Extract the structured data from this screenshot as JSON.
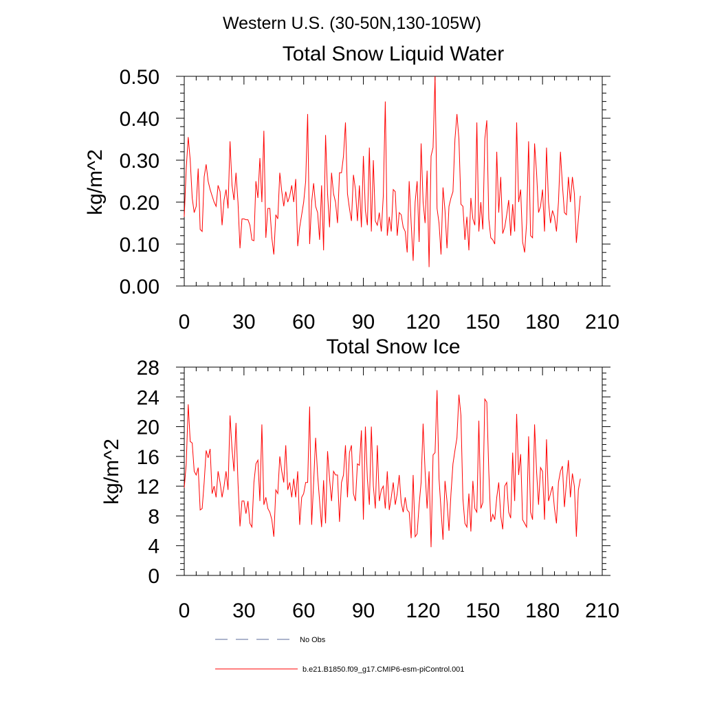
{
  "figure": {
    "title": "Western U.S. (30-50N,130-105W)",
    "legend": [
      {
        "label": "No Obs",
        "style": "dashed",
        "color": "#5a6a9a"
      },
      {
        "label": "b.e21.B1850.f09_g17.CMIP6-esm-piControl.001",
        "style": "solid",
        "color": "#ff0000"
      }
    ]
  },
  "chart_data": [
    {
      "type": "line",
      "title": "Total Snow Liquid Water",
      "xlabel": "",
      "ylabel": "kg/m^2",
      "xlim": [
        0,
        210
      ],
      "ylim": [
        0,
        0.5
      ],
      "xticks": [
        0,
        30,
        60,
        90,
        120,
        150,
        180,
        210
      ],
      "yticks": [
        0,
        0.1,
        0.2,
        0.3,
        0.4,
        0.5
      ],
      "ytick_labels": [
        "0.00",
        "0.10",
        "0.20",
        "0.30",
        "0.40",
        "0.50"
      ],
      "series": [
        {
          "name": "b.e21.B1850.f09_g17.CMIP6-esm-piControl.001",
          "color": "#ff0000",
          "x_start": 0,
          "x_step": 1,
          "values": [
            0.165,
            0.28,
            0.355,
            0.3,
            0.21,
            0.175,
            0.19,
            0.28,
            0.135,
            0.13,
            0.26,
            0.29,
            0.25,
            0.23,
            0.215,
            0.2,
            0.19,
            0.24,
            0.225,
            0.145,
            0.205,
            0.23,
            0.185,
            0.345,
            0.24,
            0.205,
            0.27,
            0.2,
            0.09,
            0.16,
            0.16,
            0.158,
            0.158,
            0.145,
            0.11,
            0.108,
            0.25,
            0.21,
            0.305,
            0.2,
            0.37,
            0.115,
            0.185,
            0.185,
            0.115,
            0.075,
            0.17,
            0.16,
            0.27,
            0.225,
            0.19,
            0.225,
            0.2,
            0.215,
            0.24,
            0.2,
            0.255,
            0.095,
            0.14,
            0.17,
            0.2,
            0.25,
            0.41,
            0.1,
            0.2,
            0.245,
            0.19,
            0.175,
            0.11,
            0.24,
            0.085,
            0.36,
            0.22,
            0.14,
            0.27,
            0.22,
            0.2,
            0.15,
            0.27,
            0.27,
            0.31,
            0.39,
            0.22,
            0.185,
            0.155,
            0.265,
            0.23,
            0.155,
            0.24,
            0.14,
            0.31,
            0.18,
            0.145,
            0.33,
            0.13,
            0.3,
            0.155,
            0.145,
            0.175,
            0.13,
            0.215,
            0.44,
            0.12,
            0.165,
            0.13,
            0.23,
            0.225,
            0.12,
            0.175,
            0.17,
            0.14,
            0.13,
            0.08,
            0.25,
            0.15,
            0.06,
            0.2,
            0.25,
            0.105,
            0.34,
            0.2,
            0.15,
            0.275,
            0.045,
            0.31,
            0.33,
            0.5,
            0.185,
            0.15,
            0.075,
            0.235,
            0.18,
            0.09,
            0.19,
            0.21,
            0.225,
            0.35,
            0.41,
            0.35,
            0.195,
            0.19,
            0.11,
            0.165,
            0.085,
            0.21,
            0.16,
            0.145,
            0.39,
            0.13,
            0.2,
            0.135,
            0.35,
            0.395,
            0.16,
            0.115,
            0.11,
            0.1,
            0.32,
            0.175,
            0.26,
            0.125,
            0.14,
            0.17,
            0.205,
            0.12,
            0.195,
            0.13,
            0.39,
            0.2,
            0.23,
            0.105,
            0.08,
            0.15,
            0.345,
            0.12,
            0.115,
            0.34,
            0.27,
            0.175,
            0.19,
            0.23,
            0.13,
            0.33,
            0.2,
            0.15,
            0.18,
            0.165,
            0.13,
            0.2,
            0.32,
            0.24,
            0.175,
            0.17,
            0.26,
            0.2,
            0.26,
            0.22,
            0.103,
            0.16,
            0.215
          ]
        }
      ]
    },
    {
      "type": "line",
      "title": "Total Snow Ice",
      "xlabel": "",
      "ylabel": "kg/m^2",
      "xlim": [
        0,
        210
      ],
      "ylim": [
        0,
        28
      ],
      "xticks": [
        0,
        30,
        60,
        90,
        120,
        150,
        180,
        210
      ],
      "yticks": [
        0,
        4,
        8,
        12,
        16,
        20,
        24,
        28
      ],
      "ytick_labels": [
        "0",
        "4",
        "8",
        "12",
        "16",
        "20",
        "24",
        "28"
      ],
      "series": [
        {
          "name": "b.e21.B1850.f09_g17.CMIP6-esm-piControl.001",
          "color": "#ff0000",
          "x_start": 0,
          "x_step": 1,
          "values": [
            11.8,
            15,
            23,
            18,
            17.8,
            14,
            13.5,
            14.5,
            8.8,
            9,
            12.5,
            16.8,
            15.8,
            17,
            11,
            12,
            10.5,
            14,
            12.5,
            10.5,
            12,
            14,
            11.5,
            21.5,
            17,
            14,
            20.5,
            12.5,
            6.6,
            10,
            10,
            8.3,
            10,
            7,
            6.5,
            12.5,
            15,
            15.5,
            10,
            20.3,
            9.5,
            10.5,
            9,
            8.5,
            7.5,
            5.2,
            11.5,
            11,
            16,
            14,
            12.5,
            17.5,
            11.5,
            12.5,
            10.5,
            13,
            10.5,
            14,
            6.8,
            10.5,
            11,
            12.5,
            12.5,
            22.7,
            6.8,
            12.5,
            18.5,
            13.5,
            10,
            6.5,
            12.8,
            7,
            16.7,
            13,
            10,
            14,
            13.5,
            13.5,
            7.2,
            12.5,
            13.5,
            17.5,
            10.5,
            16.5,
            17.5,
            11,
            10,
            15,
            14.8,
            19.5,
            7.5,
            20,
            13,
            9.5,
            20,
            12,
            9,
            17.5,
            10,
            11.5,
            12,
            9,
            14,
            8.8,
            10.5,
            12.5,
            9.5,
            11,
            13.5,
            9.8,
            8.5,
            10.5,
            8.8,
            8.5,
            5,
            13.5,
            5.2,
            5.6,
            9.5,
            12.5,
            20.4,
            14,
            9,
            14,
            3.8,
            16.2,
            16.5,
            24.9,
            13,
            8.8,
            4.8,
            12.7,
            10,
            6,
            11,
            15,
            16.8,
            18.5,
            24.3,
            21.5,
            10.3,
            7,
            6.5,
            11,
            5.9,
            12.7,
            9,
            8.5,
            20.8,
            9,
            9.8,
            23.7,
            23.3,
            14,
            7.2,
            8.2,
            7.5,
            10.5,
            12.5,
            8,
            6.2,
            12,
            12.5,
            8.5,
            7.7,
            16.5,
            10,
            21.7,
            13.5,
            16.3,
            7.5,
            7,
            6.5,
            18.7,
            8.5,
            7.5,
            20.3,
            14,
            9.5,
            14.5,
            14,
            7.5,
            18.3,
            10,
            11,
            12,
            9,
            7,
            12.5,
            14,
            14.7,
            9.2,
            12.5,
            15.5,
            10.5,
            13.7,
            12,
            5.2,
            11.5,
            13
          ]
        }
      ]
    }
  ]
}
